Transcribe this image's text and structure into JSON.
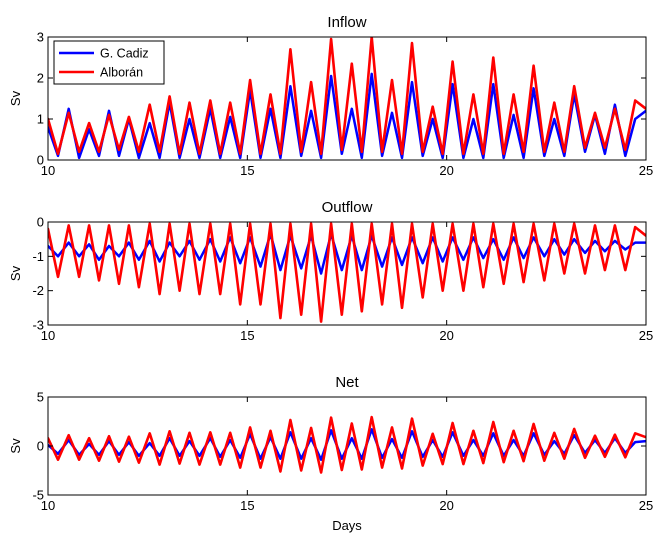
{
  "chart_data": [
    {
      "type": "line",
      "title": "Inflow",
      "xlabel": "",
      "ylabel": "Sv",
      "xlim": [
        10,
        25
      ],
      "ylim": [
        0,
        3
      ],
      "xticks": [
        10,
        15,
        20,
        25
      ],
      "yticks": [
        0,
        1,
        2,
        3
      ],
      "legend": {
        "placement": "top-left",
        "entries": [
          "G. Cadiz",
          "Alborán"
        ]
      },
      "series": [
        {
          "name": "G. Cadiz",
          "color": "#0000ff",
          "x": [
            10.0,
            10.25,
            10.52,
            10.78,
            11.03,
            11.28,
            11.53,
            11.78,
            12.03,
            12.28,
            12.55,
            12.8,
            13.05,
            13.3,
            13.55,
            13.8,
            14.07,
            14.32,
            14.57,
            14.82,
            15.07,
            15.33,
            15.58,
            15.83,
            16.08,
            16.35,
            16.6,
            16.85,
            17.1,
            17.37,
            17.62,
            17.87,
            18.12,
            18.38,
            18.63,
            18.88,
            19.13,
            19.4,
            19.65,
            19.9,
            20.15,
            20.42,
            20.67,
            20.92,
            21.17,
            21.43,
            21.68,
            21.93,
            22.18,
            22.45,
            22.7,
            22.95,
            23.2,
            23.47,
            23.72,
            23.97,
            24.22,
            24.48,
            24.73,
            25.0
          ],
          "y": [
            0.8,
            0.1,
            1.25,
            0.05,
            0.75,
            0.1,
            1.2,
            0.1,
            1.0,
            0.05,
            0.9,
            0.05,
            1.4,
            0.05,
            1.0,
            0.05,
            1.25,
            0.05,
            1.05,
            0.05,
            1.7,
            0.05,
            1.25,
            0.05,
            1.8,
            0.1,
            1.2,
            0.05,
            2.05,
            0.15,
            1.25,
            0.05,
            2.1,
            0.1,
            1.15,
            0.05,
            1.9,
            0.1,
            1.0,
            0.05,
            1.85,
            0.05,
            1.0,
            0.05,
            1.85,
            0.05,
            1.1,
            0.05,
            1.75,
            0.1,
            1.0,
            0.1,
            1.6,
            0.2,
            1.1,
            0.15,
            1.35,
            0.1,
            1.0,
            1.2
          ]
        },
        {
          "name": "Alborán",
          "color": "#ff0000",
          "x": [
            10.0,
            10.25,
            10.52,
            10.78,
            11.03,
            11.28,
            11.53,
            11.78,
            12.03,
            12.28,
            12.55,
            12.8,
            13.05,
            13.3,
            13.55,
            13.8,
            14.07,
            14.32,
            14.57,
            14.82,
            15.07,
            15.33,
            15.58,
            15.83,
            16.08,
            16.35,
            16.6,
            16.85,
            17.1,
            17.37,
            17.62,
            17.87,
            18.12,
            18.38,
            18.63,
            18.88,
            19.13,
            19.4,
            19.65,
            19.9,
            20.15,
            20.42,
            20.67,
            20.92,
            21.17,
            21.43,
            21.68,
            21.93,
            22.18,
            22.45,
            22.7,
            22.95,
            23.2,
            23.47,
            23.72,
            23.97,
            24.22,
            24.48,
            24.73,
            25.0
          ],
          "y": [
            1.0,
            0.15,
            1.15,
            0.2,
            0.9,
            0.2,
            1.1,
            0.25,
            1.05,
            0.2,
            1.35,
            0.2,
            1.55,
            0.15,
            1.4,
            0.15,
            1.45,
            0.15,
            1.4,
            0.15,
            1.95,
            0.15,
            1.6,
            0.15,
            2.7,
            0.2,
            1.9,
            0.15,
            2.95,
            0.25,
            2.35,
            0.2,
            3.0,
            0.2,
            1.95,
            0.15,
            2.85,
            0.2,
            1.3,
            0.15,
            2.4,
            0.15,
            1.6,
            0.15,
            2.5,
            0.15,
            1.6,
            0.2,
            2.3,
            0.2,
            1.4,
            0.2,
            1.8,
            0.3,
            1.15,
            0.3,
            1.25,
            0.25,
            1.45,
            1.25
          ]
        }
      ]
    },
    {
      "type": "line",
      "title": "Outflow",
      "xlabel": "",
      "ylabel": "Sv",
      "xlim": [
        10,
        25
      ],
      "ylim": [
        -3,
        0
      ],
      "xticks": [
        10,
        15,
        20,
        25
      ],
      "yticks": [
        -3,
        -2,
        -1,
        0
      ],
      "series": [
        {
          "name": "G. Cadiz",
          "color": "#0000ff",
          "x": [
            10.0,
            10.25,
            10.52,
            10.78,
            11.03,
            11.28,
            11.53,
            11.78,
            12.03,
            12.28,
            12.55,
            12.8,
            13.05,
            13.3,
            13.55,
            13.8,
            14.07,
            14.32,
            14.57,
            14.82,
            15.07,
            15.33,
            15.58,
            15.83,
            16.08,
            16.35,
            16.6,
            16.85,
            17.1,
            17.37,
            17.62,
            17.87,
            18.12,
            18.38,
            18.63,
            18.88,
            19.13,
            19.4,
            19.65,
            19.9,
            20.15,
            20.42,
            20.67,
            20.92,
            21.17,
            21.43,
            21.68,
            21.93,
            22.18,
            22.45,
            22.7,
            22.95,
            23.2,
            23.47,
            23.72,
            23.97,
            24.22,
            24.48,
            24.73,
            25.0
          ],
          "y": [
            -0.7,
            -1.0,
            -0.6,
            -1.0,
            -0.65,
            -1.1,
            -0.7,
            -1.0,
            -0.6,
            -1.1,
            -0.55,
            -1.15,
            -0.6,
            -1.0,
            -0.55,
            -1.1,
            -0.5,
            -1.15,
            -0.45,
            -1.2,
            -0.45,
            -1.3,
            -0.35,
            -1.4,
            -0.4,
            -1.35,
            -0.4,
            -1.5,
            -0.35,
            -1.4,
            -0.4,
            -1.4,
            -0.4,
            -1.3,
            -0.45,
            -1.25,
            -0.45,
            -1.2,
            -0.45,
            -1.15,
            -0.45,
            -1.1,
            -0.45,
            -1.05,
            -0.5,
            -1.1,
            -0.45,
            -1.05,
            -0.45,
            -1.0,
            -0.5,
            -0.95,
            -0.5,
            -0.9,
            -0.55,
            -0.85,
            -0.55,
            -0.8,
            -0.6,
            -0.6
          ]
        },
        {
          "name": "Alborán",
          "color": "#ff0000",
          "x": [
            10.0,
            10.25,
            10.52,
            10.78,
            11.03,
            11.28,
            11.53,
            11.78,
            12.03,
            12.28,
            12.55,
            12.8,
            13.05,
            13.3,
            13.55,
            13.8,
            14.07,
            14.32,
            14.57,
            14.82,
            15.07,
            15.33,
            15.58,
            15.83,
            16.08,
            16.35,
            16.6,
            16.85,
            17.1,
            17.37,
            17.62,
            17.87,
            18.12,
            18.38,
            18.63,
            18.88,
            19.13,
            19.4,
            19.65,
            19.9,
            20.15,
            20.42,
            20.67,
            20.92,
            21.17,
            21.43,
            21.68,
            21.93,
            22.18,
            22.45,
            22.7,
            22.95,
            23.2,
            23.47,
            23.72,
            23.97,
            24.22,
            24.48,
            24.73,
            25.0
          ],
          "y": [
            -0.2,
            -1.6,
            -0.1,
            -1.6,
            -0.1,
            -1.7,
            -0.1,
            -1.8,
            -0.1,
            -1.9,
            -0.05,
            -2.1,
            -0.05,
            -2.0,
            -0.05,
            -2.1,
            -0.05,
            -2.1,
            -0.05,
            -2.4,
            -0.05,
            -2.4,
            -0.05,
            -2.8,
            -0.05,
            -2.7,
            -0.05,
            -2.9,
            -0.05,
            -2.7,
            -0.05,
            -2.6,
            -0.05,
            -2.4,
            -0.05,
            -2.5,
            -0.05,
            -2.2,
            -0.05,
            -2.0,
            -0.05,
            -2.0,
            -0.05,
            -1.9,
            -0.05,
            -1.8,
            -0.05,
            -1.75,
            -0.05,
            -1.7,
            -0.05,
            -1.5,
            -0.05,
            -1.5,
            -0.1,
            -1.4,
            -0.1,
            -1.4,
            -0.15,
            -0.4
          ]
        }
      ]
    },
    {
      "type": "line",
      "title": "Net",
      "xlabel": "Days",
      "ylabel": "Sv",
      "xlim": [
        10,
        25
      ],
      "ylim": [
        -5,
        5
      ],
      "xticks": [
        10,
        15,
        20,
        25
      ],
      "yticks": [
        -5,
        0,
        5
      ],
      "series": [
        {
          "name": "G. Cadiz",
          "color": "#0000ff",
          "x": [
            10.0,
            10.25,
            10.52,
            10.78,
            11.03,
            11.28,
            11.53,
            11.78,
            12.03,
            12.28,
            12.55,
            12.8,
            13.05,
            13.3,
            13.55,
            13.8,
            14.07,
            14.32,
            14.57,
            14.82,
            15.07,
            15.33,
            15.58,
            15.83,
            16.08,
            16.35,
            16.6,
            16.85,
            17.1,
            17.37,
            17.62,
            17.87,
            18.12,
            18.38,
            18.63,
            18.88,
            19.13,
            19.4,
            19.65,
            19.9,
            20.15,
            20.42,
            20.67,
            20.92,
            21.17,
            21.43,
            21.68,
            21.93,
            22.18,
            22.45,
            22.7,
            22.95,
            23.2,
            23.47,
            23.72,
            23.97,
            24.22,
            24.48,
            24.73,
            25.0
          ],
          "y": [
            0.1,
            -0.8,
            0.6,
            -0.9,
            0.2,
            -0.9,
            0.5,
            -0.9,
            0.4,
            -1.0,
            0.3,
            -1.0,
            0.8,
            -1.0,
            0.5,
            -1.0,
            0.8,
            -1.1,
            0.6,
            -1.2,
            1.2,
            -1.3,
            0.9,
            -1.3,
            1.4,
            -1.3,
            0.8,
            -1.4,
            1.6,
            -1.3,
            0.8,
            -1.3,
            1.7,
            -1.2,
            0.7,
            -1.2,
            1.5,
            -1.1,
            0.6,
            -1.1,
            1.4,
            -1.0,
            0.6,
            -1.0,
            1.3,
            -1.0,
            0.6,
            -1.0,
            1.3,
            -0.9,
            0.5,
            -0.8,
            1.1,
            -0.7,
            0.6,
            -0.7,
            0.8,
            -0.7,
            0.4,
            0.5
          ]
        },
        {
          "name": "Alborán",
          "color": "#ff0000",
          "x": [
            10.0,
            10.25,
            10.52,
            10.78,
            11.03,
            11.28,
            11.53,
            11.78,
            12.03,
            12.28,
            12.55,
            12.8,
            13.05,
            13.3,
            13.55,
            13.8,
            14.07,
            14.32,
            14.57,
            14.82,
            15.07,
            15.33,
            15.58,
            15.83,
            16.08,
            16.35,
            16.6,
            16.85,
            17.1,
            17.37,
            17.62,
            17.87,
            18.12,
            18.38,
            18.63,
            18.88,
            19.13,
            19.4,
            19.65,
            19.9,
            20.15,
            20.42,
            20.67,
            20.92,
            21.17,
            21.43,
            21.68,
            21.93,
            22.18,
            22.45,
            22.7,
            22.95,
            23.2,
            23.47,
            23.72,
            23.97,
            24.22,
            24.48,
            24.73,
            25.0
          ],
          "y": [
            0.8,
            -1.4,
            1.1,
            -1.4,
            0.8,
            -1.5,
            1.0,
            -1.6,
            0.95,
            -1.7,
            1.3,
            -1.9,
            1.5,
            -1.8,
            1.35,
            -1.9,
            1.4,
            -1.9,
            1.35,
            -2.2,
            1.9,
            -2.2,
            1.55,
            -2.6,
            2.65,
            -2.5,
            1.85,
            -2.7,
            2.9,
            -2.45,
            2.3,
            -2.4,
            2.95,
            -2.2,
            1.9,
            -2.3,
            2.8,
            -2.0,
            1.25,
            -1.85,
            2.35,
            -1.85,
            1.55,
            -1.75,
            2.45,
            -1.65,
            1.55,
            -1.55,
            2.25,
            -1.5,
            1.35,
            -1.3,
            1.75,
            -1.2,
            1.05,
            -1.1,
            1.15,
            -1.15,
            1.3,
            0.9
          ]
        }
      ]
    }
  ]
}
